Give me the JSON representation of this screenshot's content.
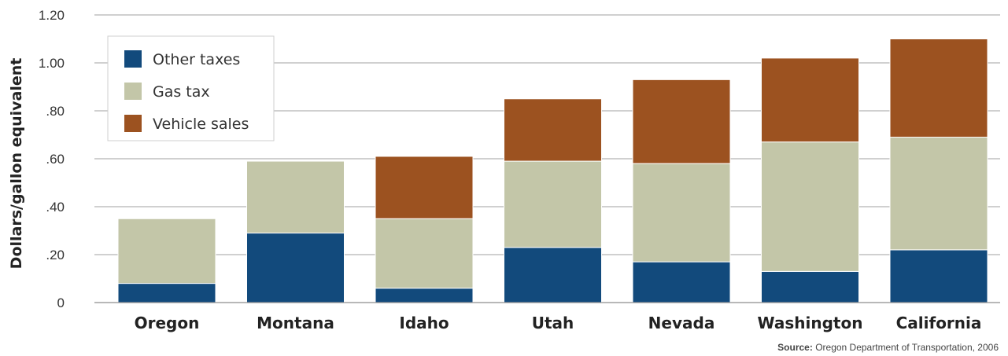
{
  "colors": {
    "other_taxes": "#124a7c",
    "gas_tax": "#c3c6a8",
    "vehicle_sales": "#9c5220",
    "grid": "#b5b5b5"
  },
  "chart_data": {
    "type": "bar",
    "stacked": true,
    "ylabel": "Dollars/gallon equivalent",
    "xlabel": "",
    "ylim": [
      0,
      1.2
    ],
    "yticks": [
      {
        "value": 0,
        "label": "0"
      },
      {
        "value": 0.2,
        "label": ".20"
      },
      {
        "value": 0.4,
        "label": ".40"
      },
      {
        "value": 0.6,
        "label": ".60"
      },
      {
        "value": 0.8,
        "label": ".80"
      },
      {
        "value": 1.0,
        "label": "1.00"
      },
      {
        "value": 1.2,
        "label": "1.20"
      }
    ],
    "grid": true,
    "legend_position": "top-left",
    "categories": [
      "Oregon",
      "Montana",
      "Idaho",
      "Utah",
      "Nevada",
      "Washington",
      "California"
    ],
    "series": [
      {
        "name": "Other taxes",
        "color_key": "other_taxes",
        "values": [
          0.08,
          0.29,
          0.06,
          0.23,
          0.17,
          0.13,
          0.22
        ]
      },
      {
        "name": "Gas tax",
        "color_key": "gas_tax",
        "values": [
          0.27,
          0.3,
          0.29,
          0.36,
          0.41,
          0.54,
          0.47
        ]
      },
      {
        "name": "Vehicle sales",
        "color_key": "vehicle_sales",
        "values": [
          0.0,
          0.0,
          0.26,
          0.26,
          0.35,
          0.35,
          0.41
        ]
      }
    ],
    "legend_order": [
      "Other taxes",
      "Gas tax",
      "Vehicle sales"
    ]
  },
  "source": {
    "label": "Source:",
    "text": "Oregon Department of Transportation, 2006"
  }
}
